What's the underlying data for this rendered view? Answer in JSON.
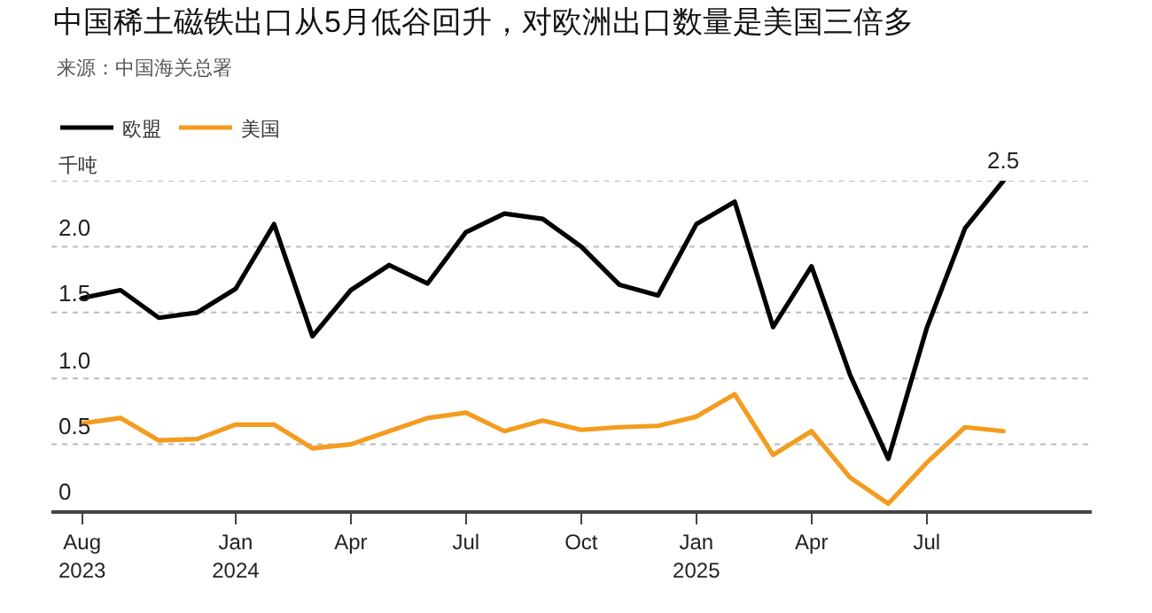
{
  "chart_data": {
    "type": "line",
    "title": "中国稀土磁铁出口从5月低谷回升，对欧洲出口数量是美国三倍多",
    "annotations": [
      "来源：中国海关总署"
    ],
    "ylabel": "千吨",
    "categories": [
      "Aug\n2023",
      null,
      null,
      null,
      "Jan\n2024",
      null,
      null,
      "Apr",
      null,
      null,
      "Jul",
      null,
      null,
      "Oct",
      null,
      null,
      "Jan\n2025",
      null,
      null,
      "Apr",
      null,
      null,
      "Jul",
      null,
      null
    ],
    "series": [
      {
        "name": "欧盟",
        "color": "#000000",
        "values": [
          1.61,
          1.67,
          1.46,
          1.5,
          1.68,
          2.17,
          1.32,
          1.67,
          1.86,
          1.72,
          2.11,
          2.25,
          2.21,
          2.0,
          1.71,
          1.63,
          2.17,
          2.34,
          1.39,
          1.85,
          1.03,
          0.39,
          1.38,
          2.14,
          2.5
        ],
        "value_labels": [
          null,
          null,
          null,
          null,
          null,
          null,
          null,
          null,
          null,
          null,
          null,
          null,
          null,
          null,
          null,
          null,
          null,
          null,
          null,
          null,
          null,
          null,
          null,
          null,
          "2.5"
        ]
      },
      {
        "name": "美国",
        "color": "#f39c1f",
        "values": [
          0.66,
          0.7,
          0.53,
          0.54,
          0.65,
          0.65,
          0.47,
          0.5,
          0.6,
          0.7,
          0.74,
          0.6,
          0.68,
          0.61,
          0.63,
          0.64,
          0.71,
          0.88,
          0.42,
          0.6,
          0.25,
          0.05,
          0.36,
          0.63,
          0.6
        ]
      }
    ],
    "ylim": [
      0,
      2.5
    ],
    "yticks": [
      0,
      {
        "value": 0.5,
        "label": "0.5"
      },
      {
        "value": 1,
        "label": "1.0"
      },
      {
        "value": 1.5,
        "label": "1.5"
      },
      {
        "value": 2,
        "label": "2.0"
      },
      {
        "value": 2.5,
        "label": null
      }
    ],
    "grid": "y",
    "legend": "top left",
    "marker": "none",
    "line_style": "solid"
  }
}
